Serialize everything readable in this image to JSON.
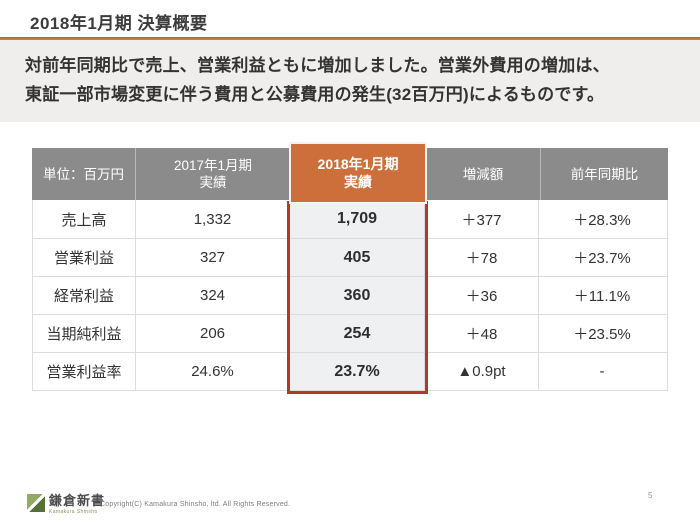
{
  "page": {
    "title": "2018年1月期 決算概要",
    "page_number": "5"
  },
  "summary": {
    "line1": "対前年同期比で売上、営業利益ともに増加しました。営業外費用の増加は、",
    "line2": "東証一部市場変更に伴う費用と公募費用の発生(32百万円)によるものです。"
  },
  "table": {
    "unit_header": "単位：百万円",
    "col_2017": {
      "line1": "2017年1月期",
      "line2": "実績"
    },
    "col_2018": {
      "line1": "2018年1月期",
      "line2": "実績"
    },
    "col_diff": "増減額",
    "col_yoy": "前年同期比",
    "rows": [
      {
        "label": "売上高",
        "y2017": "1,332",
        "y2018": "1,709",
        "diff": "＋377",
        "yoy": "＋28.3%"
      },
      {
        "label": "営業利益",
        "y2017": "327",
        "y2018": "405",
        "diff": "＋78",
        "yoy": "＋23.7%"
      },
      {
        "label": "経常利益",
        "y2017": "324",
        "y2018": "360",
        "diff": "＋36",
        "yoy": "＋11.1%"
      },
      {
        "label": "当期純利益",
        "y2017": "206",
        "y2018": "254",
        "diff": "＋48",
        "yoy": "＋23.5%"
      },
      {
        "label": "営業利益率",
        "y2017": "24.6%",
        "y2018": "23.7%",
        "diff": "▲0.9pt",
        "yoy": "-"
      }
    ]
  },
  "footer": {
    "logo_jp": "鎌倉新書",
    "logo_en": "Kamakura Shinsho",
    "copyright": "Copyright(C) Kamakura Shinsho, ltd. All Rights Reserved."
  },
  "colors": {
    "accent_orange": "#cd6f3a",
    "title_rule_orange": "#b5713f",
    "highlight_red_border": "#ae3a2b",
    "header_gray": "#8b8b8b",
    "summary_bg": "#efeeec",
    "highlight_cell_bg": "#eef0f1",
    "logo_green_dark": "#546f38",
    "logo_green_light": "#92aa64"
  }
}
